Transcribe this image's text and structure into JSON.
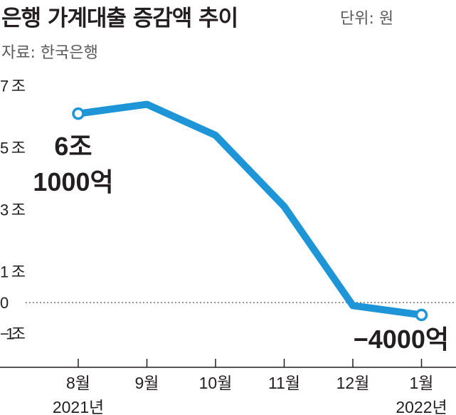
{
  "title": "은행 가계대출 증감액 추이",
  "unit": "단위: 원",
  "source": "자료: 한국은행",
  "chart_data": {
    "type": "line",
    "title": "은행 가계대출 증감액 추이",
    "ylabel": "",
    "xlabel": "",
    "categories": [
      "8월",
      "9월",
      "10월",
      "11월",
      "12월",
      "1월"
    ],
    "year_labels": [
      "2021년",
      "",
      "",
      "",
      "",
      "2022년"
    ],
    "values": [
      6.1,
      6.4,
      5.4,
      3.1,
      -0.1,
      -0.4
    ],
    "ylim": [
      -1.8,
      7.3
    ],
    "yticks": [
      7,
      5,
      3,
      1,
      0,
      -1
    ],
    "ytick_labels": [
      "7조",
      "5조",
      "3조",
      "1조",
      "0",
      "−1조"
    ],
    "color": "#1d95d6",
    "zero_line": "dotted",
    "annotations": [
      {
        "index": 0,
        "lines": [
          "6조",
          "1000억"
        ]
      },
      {
        "index": 5,
        "lines": [
          "−4000억"
        ]
      }
    ]
  }
}
